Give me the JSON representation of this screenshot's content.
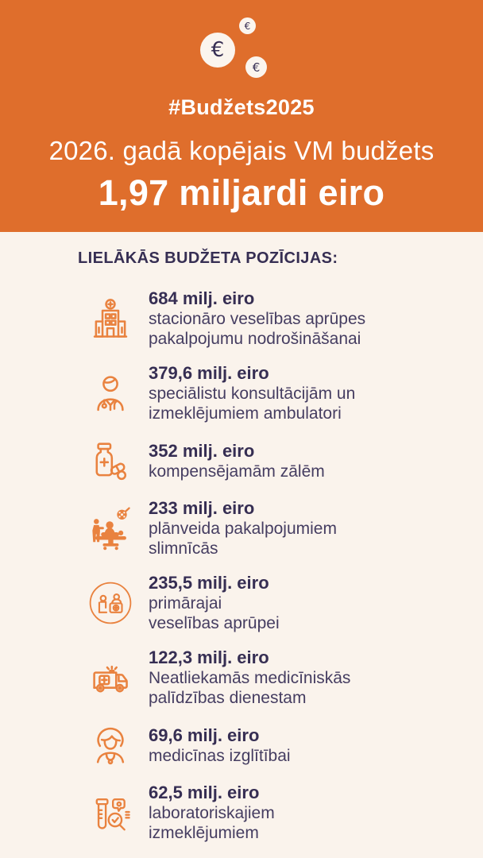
{
  "colors": {
    "header-orange": "#DF6E2C",
    "icon-orange": "#E9823F",
    "text-navy": "#362E53",
    "desc-navy": "#453D61",
    "background-cream": "#FAF3EC",
    "coin-cream": "#FBF5EE"
  },
  "header": {
    "hashtag": "#Budžets2025",
    "subtitle": "2026. gadā kopējais VM budžets",
    "title": "1,97 miljardi eiro",
    "coin_symbol": "€"
  },
  "body": {
    "heading": "LIELĀKĀS BUDŽETA POZĪCIJAS:",
    "items": [
      {
        "icon": "hospital-icon",
        "amount": "684 milj. eiro",
        "description_lines": [
          "stacionāro veselības aprūpes",
          "pakalpojumu nodrošināšanai"
        ]
      },
      {
        "icon": "doctor-icon",
        "amount": "379,6 milj. eiro",
        "description_lines": [
          "speciālistu konsultācijām un",
          "izmeklējumiem ambulatori"
        ]
      },
      {
        "icon": "medicine-icon",
        "amount": "352 milj. eiro",
        "description_lines": [
          "kompensējamām zālēm"
        ]
      },
      {
        "icon": "surgery-icon",
        "amount": "233 milj. eiro",
        "description_lines": [
          "plānveida pakalpojumiem",
          "slimnīcās"
        ]
      },
      {
        "icon": "primary-care-icon",
        "amount": "235,5 milj. eiro",
        "description_lines": [
          "primārajai",
          "veselības aprūpei"
        ]
      },
      {
        "icon": "ambulance-icon",
        "amount": "122,3 milj. eiro",
        "description_lines": [
          "Neatliekamās medicīniskās",
          "palīdzības dienestam"
        ]
      },
      {
        "icon": "nurse-icon",
        "amount": "69,6 milj. eiro",
        "description_lines": [
          "medicīnas izglītībai"
        ]
      },
      {
        "icon": "lab-icon",
        "amount": "62,5 milj. eiro",
        "description_lines": [
          "laboratoriskajiem",
          "izmeklējumiem"
        ]
      }
    ]
  }
}
